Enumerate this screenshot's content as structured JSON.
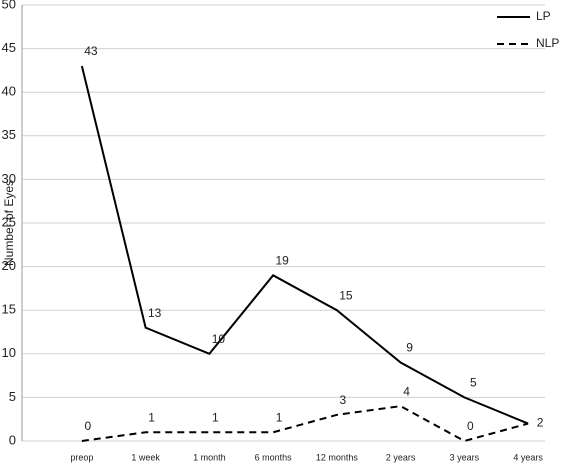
{
  "chart_data": {
    "type": "line",
    "y_label": "Number of Eyes",
    "categories": [
      "preop",
      "1 week",
      "1 month",
      "6 months",
      "12 months",
      "2 years",
      "3 years",
      "4 years"
    ],
    "series": [
      {
        "name": "LP",
        "color": "#000000",
        "dash": "solid",
        "values": [
          43,
          13,
          10,
          19,
          15,
          9,
          5,
          2
        ]
      },
      {
        "name": "NLP",
        "color": "#000000",
        "dash": "dashed",
        "values": [
          0,
          1,
          1,
          1,
          3,
          4,
          0,
          2
        ]
      }
    ],
    "ylim": [
      0,
      50
    ],
    "yticks": [
      0,
      5,
      10,
      15,
      20,
      25,
      30,
      35,
      40,
      45,
      50
    ],
    "grid": true,
    "legend": "upper right"
  }
}
